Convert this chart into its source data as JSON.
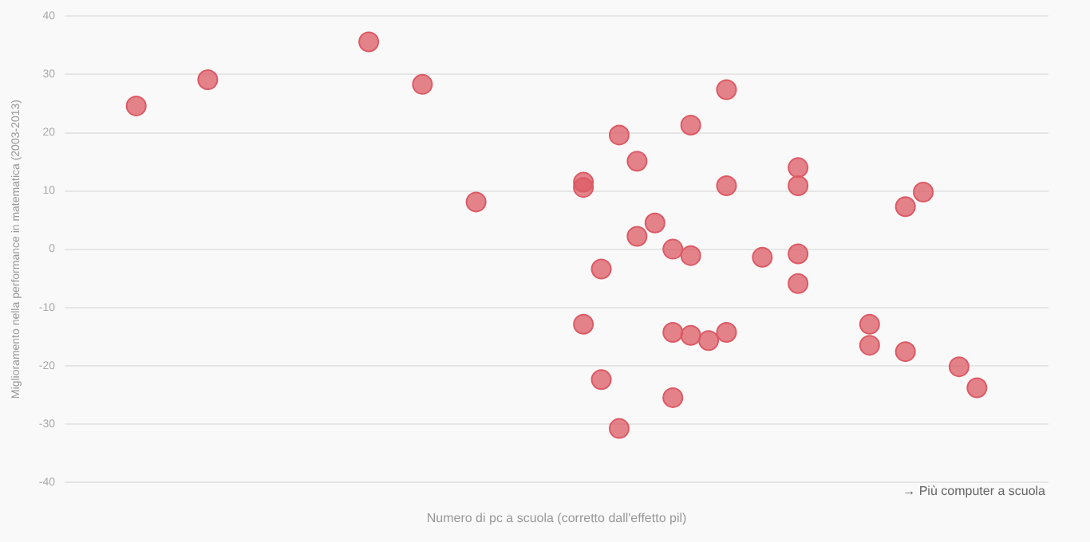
{
  "chart_data": {
    "type": "scatter",
    "xlabel": "Numero di pc a scuola (corretto dall'effetto pil)",
    "ylabel": "Miglioramento nella performance in matematica (2003-2013)",
    "annotations": [
      "→ Più computer a scuola"
    ],
    "ylim": [
      -40,
      40
    ],
    "yticks": [
      -40,
      -30,
      -20,
      -10,
      0,
      10,
      20,
      30,
      40
    ],
    "grid": "y",
    "tick_labels": "y",
    "legend": false,
    "marker": "circle",
    "categories": [
      null,
      null,
      null,
      null,
      null,
      null,
      null,
      null,
      null,
      null,
      null,
      null,
      null,
      null,
      null,
      null,
      null,
      null,
      null,
      null,
      null,
      null,
      null,
      null,
      null,
      null,
      null,
      null,
      null,
      null,
      null,
      null,
      null,
      null,
      null,
      null,
      null,
      null,
      null,
      null,
      null,
      null,
      null,
      null,
      null,
      null,
      null,
      null,
      null,
      null,
      null,
      null,
      null,
      null,
      null,
      null
    ],
    "series": [
      {
        "color": "#dc5a64",
        "values": [
          null,
          null,
          null,
          null,
          24.6,
          null,
          null,
          null,
          29.1,
          null,
          null,
          null,
          null,
          null,
          null,
          null,
          null,
          35.6,
          null,
          null,
          28.3,
          null,
          null,
          8.1,
          null,
          null,
          null,
          null,
          null,
          11.5,
          -3.4,
          19.6,
          15.1,
          4.5,
          0,
          21.3,
          -15.7,
          27.4,
          null,
          -1.4,
          null,
          14,
          null,
          null,
          null,
          -12.9,
          null,
          7.3,
          9.8,
          null,
          -20.2,
          -23.8,
          null,
          null,
          null,
          null
        ]
      },
      {
        "color": "#dc5a64",
        "values": [
          null,
          null,
          null,
          null,
          null,
          null,
          null,
          null,
          null,
          null,
          null,
          null,
          null,
          null,
          null,
          null,
          null,
          null,
          null,
          null,
          null,
          null,
          null,
          null,
          null,
          null,
          null,
          null,
          null,
          10.6,
          -22.4,
          -30.8,
          2.2,
          null,
          -14.3,
          -1.1,
          null,
          10.9,
          null,
          null,
          null,
          10.9,
          null,
          null,
          null,
          -16.5,
          null,
          -17.6,
          null,
          null,
          null,
          null,
          null,
          null,
          null,
          null
        ]
      },
      {
        "color": "#dc5a64",
        "values": [
          null,
          null,
          null,
          null,
          null,
          null,
          null,
          null,
          null,
          null,
          null,
          null,
          null,
          null,
          null,
          null,
          null,
          null,
          null,
          null,
          null,
          null,
          null,
          null,
          null,
          null,
          null,
          null,
          null,
          -12.9,
          null,
          null,
          null,
          null,
          -25.5,
          null,
          null,
          -14.3,
          null,
          null,
          null,
          -0.8,
          null,
          null,
          null,
          null,
          null,
          null,
          null,
          null,
          null,
          null,
          null,
          null,
          null,
          null
        ]
      },
      {
        "color": "#dc5a64",
        "values": [
          null,
          null,
          null,
          null,
          null,
          null,
          null,
          null,
          null,
          null,
          null,
          null,
          null,
          null,
          null,
          null,
          null,
          null,
          null,
          null,
          null,
          null,
          null,
          null,
          null,
          null,
          null,
          null,
          null,
          null,
          null,
          null,
          null,
          null,
          null,
          -14.8,
          null,
          null,
          null,
          null,
          null,
          -5.9,
          null,
          null,
          null,
          null,
          null,
          null,
          null,
          null,
          null,
          null,
          null,
          null,
          null,
          null
        ]
      }
    ]
  }
}
